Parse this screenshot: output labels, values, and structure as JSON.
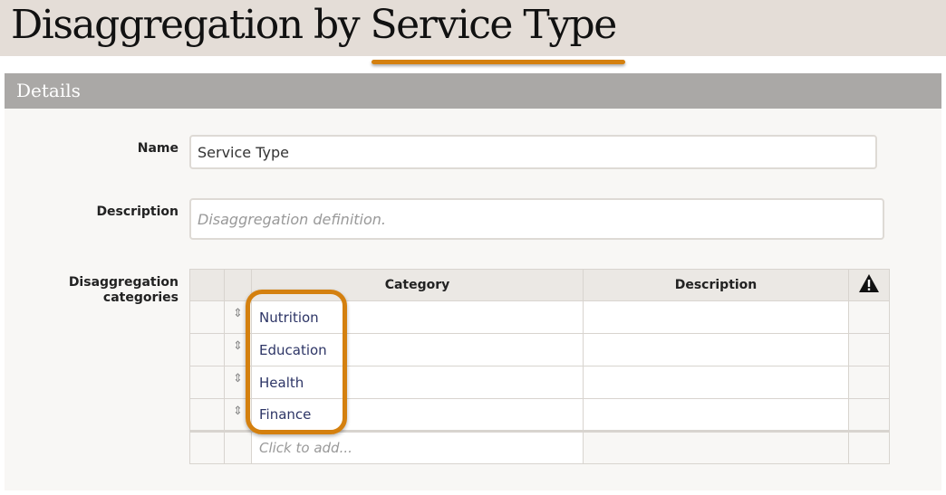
{
  "page": {
    "title": "Disaggregation by Service Type",
    "accent_color": "#d4800f"
  },
  "section": {
    "title": "Details"
  },
  "form": {
    "name_label": "Name",
    "name_value": "Service Type",
    "description_label": "Description",
    "description_placeholder": "Disaggregation definition.",
    "categories_label_line1": "Disaggregation",
    "categories_label_line2": "categories"
  },
  "table": {
    "headers": {
      "category": "Category",
      "description": "Description",
      "warning_icon": "warning-icon"
    },
    "rows": [
      {
        "category": "Nutrition",
        "description": ""
      },
      {
        "category": "Education",
        "description": ""
      },
      {
        "category": "Health",
        "description": ""
      },
      {
        "category": "Finance",
        "description": ""
      }
    ],
    "add_placeholder": "Click to add..."
  }
}
